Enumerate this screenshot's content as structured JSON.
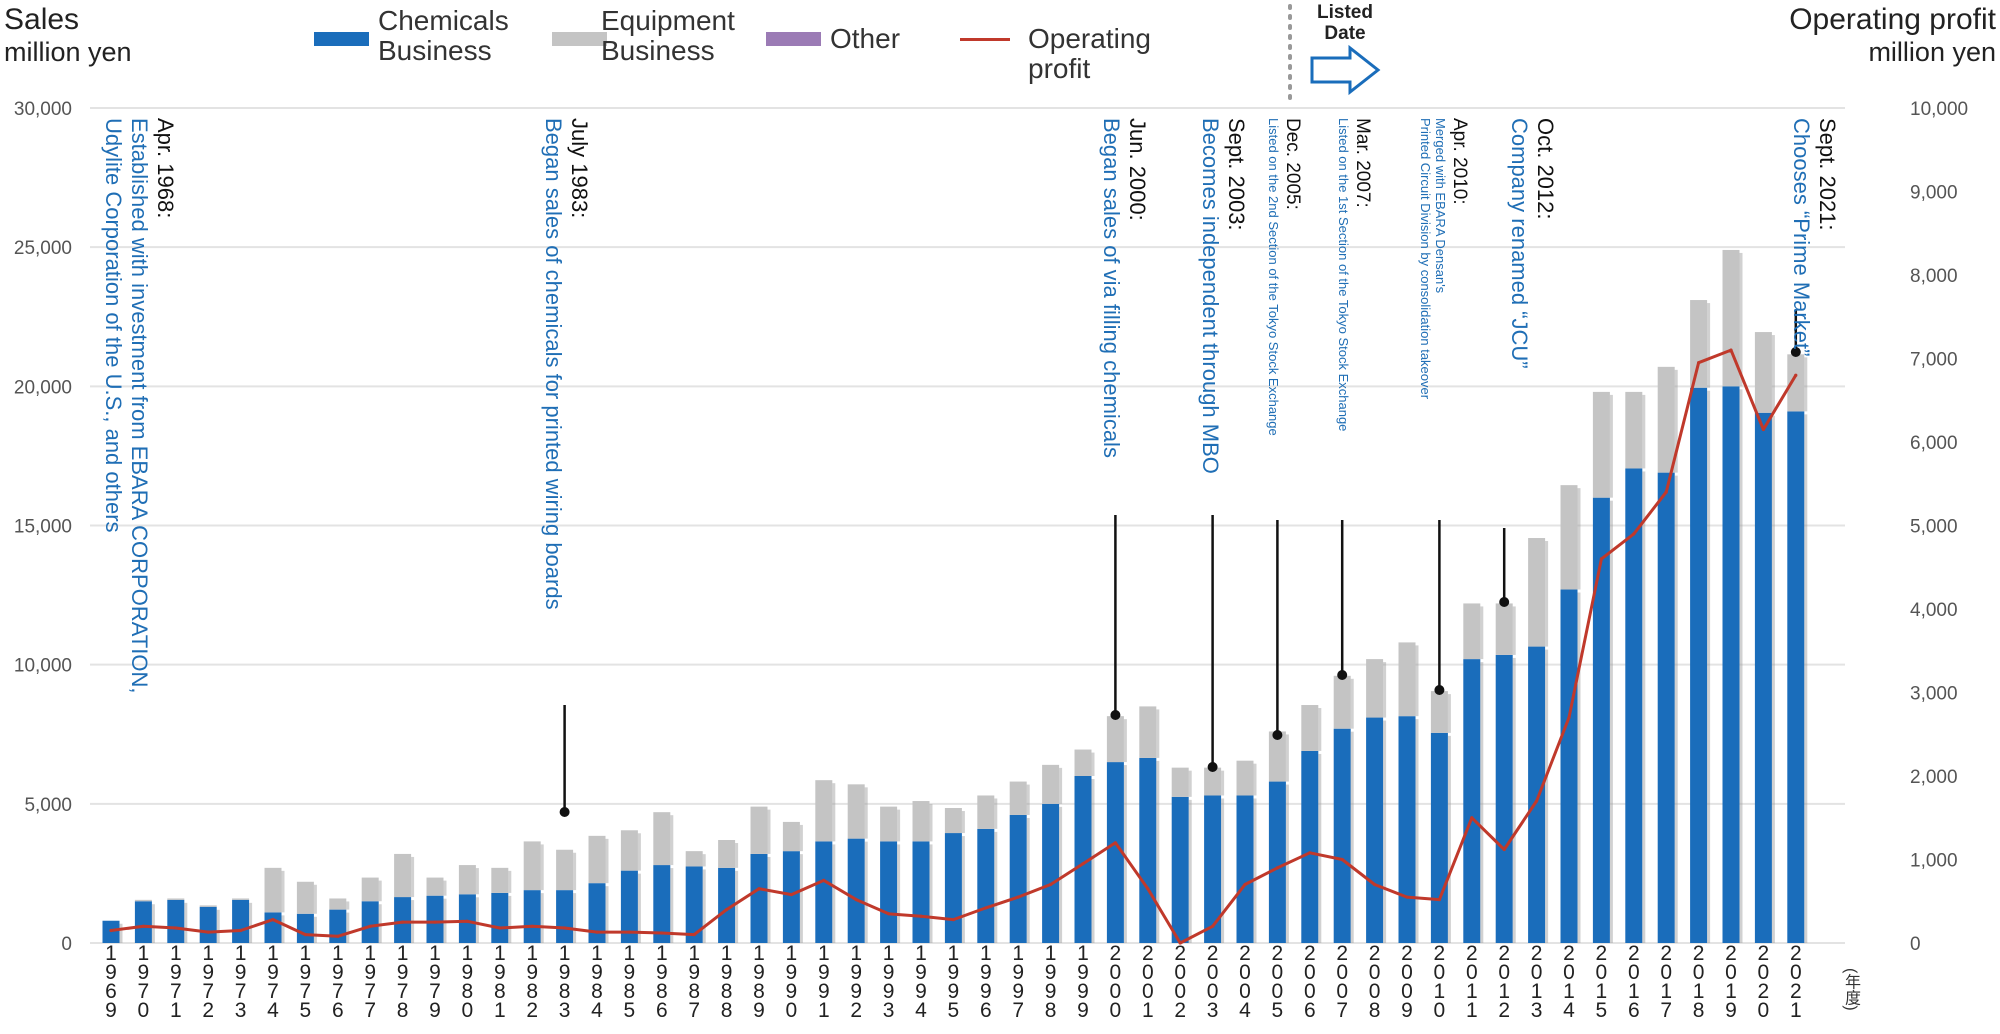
{
  "left_axis": {
    "title_line1": "Sales",
    "title_line2": "million yen"
  },
  "right_axis": {
    "title_line1": "Operating profit",
    "title_line2": "million yen"
  },
  "legend": [
    {
      "label_line1": "Chemicals",
      "label_line2": "Business",
      "color": "#1a6dbb"
    },
    {
      "label_line1": "Equipment",
      "label_line2": "Business",
      "color": "#c4c4c4"
    },
    {
      "label_line1": "Other",
      "label_line2": "",
      "color": "#9b7bb5"
    },
    {
      "label_line1": "Operating profit",
      "label_line2": "",
      "color": "#c0392b"
    }
  ],
  "listed_marker": {
    "line1": "Listed",
    "line2": "Date"
  },
  "year_suffix": "(年度)",
  "annotations": [
    {
      "date": "Apr. 1968:",
      "text_lines": [
        "Established with investment from EBARA CORPORATION,",
        "Udylite Corporation of the U.S., and others"
      ]
    },
    {
      "date": "July 1983:",
      "text_lines": [
        "Began sales of chemicals for printed wiring boards"
      ]
    },
    {
      "date": "Jun. 2000:",
      "text_lines": [
        "Began sales of via filling chemicals"
      ]
    },
    {
      "date": "Sept. 2003:",
      "text_lines": [
        "Becomes independent through MBO"
      ]
    },
    {
      "date": "Dec. 2005:",
      "text_lines": [
        "Listed on the 2nd Section of the Tokyo Stock Exchange"
      ]
    },
    {
      "date": "Mar. 2007:",
      "text_lines": [
        "Listed on the 1st Section of the Tokyo Stock Exchange"
      ]
    },
    {
      "date": "Apr. 2010:",
      "text_lines": [
        "Merged with EBARA Densan's",
        "Printed Circuit Division by consolidation takeover"
      ]
    },
    {
      "date": "Oct. 2012:",
      "text_lines": [
        "Company renamed “JCU”"
      ]
    },
    {
      "date": "Sept. 2021:",
      "text_lines": [
        "Chooses “Prime Market”"
      ]
    }
  ],
  "chart_data": {
    "type": "bar",
    "stacked": true,
    "grid": true,
    "legend_position": "top",
    "categories": [
      "1969",
      "1970",
      "1971",
      "1972",
      "1973",
      "1974",
      "1975",
      "1976",
      "1977",
      "1978",
      "1979",
      "1980",
      "1981",
      "1982",
      "1983",
      "1984",
      "1985",
      "1986",
      "1987",
      "1988",
      "1989",
      "1990",
      "1991",
      "1992",
      "1993",
      "1994",
      "1995",
      "1996",
      "1997",
      "1998",
      "1999",
      "2000",
      "2001",
      "2002",
      "2003",
      "2004",
      "2005",
      "2006",
      "2007",
      "2008",
      "2009",
      "2010",
      "2011",
      "2012",
      "2013",
      "2014",
      "2015",
      "2016",
      "2017",
      "2018",
      "2019",
      "2020",
      "2021"
    ],
    "y_left_ticks": [
      "0",
      "5,000",
      "10,000",
      "15,000",
      "20,000",
      "25,000",
      "30,000"
    ],
    "y_right_ticks": [
      "0",
      "1,000",
      "2,000",
      "3,000",
      "4,000",
      "5,000",
      "6,000",
      "7,000",
      "8,000",
      "9,000",
      "10,000"
    ],
    "ylim_left": [
      0,
      30000
    ],
    "ylim_right": [
      0,
      10000
    ],
    "series": [
      {
        "name": "Chemicals Business",
        "axis": "left",
        "color": "#1a6dbb",
        "values": [
          800,
          1500,
          1550,
          1300,
          1550,
          1100,
          1050,
          1200,
          1500,
          1650,
          1700,
          1750,
          1800,
          1900,
          1900,
          2150,
          2600,
          2800,
          2750,
          2700,
          3200,
          3300,
          3650,
          3750,
          3650,
          3650,
          3950,
          4100,
          4600,
          5000,
          6000,
          6500,
          6650,
          5250,
          5300,
          5300,
          5800,
          6900,
          7700,
          8100,
          8150,
          7550,
          10200,
          10350,
          10650,
          12700,
          16000,
          17050,
          16900,
          19950,
          20000,
          19050,
          19100
        ]
      },
      {
        "name": "Equipment Business",
        "axis": "left",
        "color": "#c4c4c4",
        "values": [
          0,
          50,
          50,
          50,
          50,
          1600,
          1150,
          400,
          850,
          1550,
          650,
          1050,
          900,
          1750,
          1450,
          1700,
          1450,
          1900,
          550,
          1000,
          1700,
          1050,
          2200,
          1950,
          1250,
          1450,
          900,
          1200,
          1200,
          1400,
          950,
          1650,
          1850,
          1050,
          1000,
          1250,
          1800,
          1650,
          1900,
          2100,
          2650,
          1500,
          2000,
          1850,
          3900,
          3750,
          3800,
          2750,
          3800,
          3150,
          4900,
          2900,
          2050
        ]
      },
      {
        "name": "Other",
        "axis": "left",
        "color": "#9b7bb5",
        "values": [
          0,
          0,
          0,
          0,
          0,
          0,
          0,
          0,
          0,
          0,
          0,
          0,
          0,
          0,
          0,
          0,
          0,
          0,
          0,
          0,
          0,
          0,
          0,
          0,
          0,
          0,
          0,
          0,
          0,
          0,
          0,
          0,
          0,
          0,
          0,
          0,
          0,
          0,
          0,
          0,
          0,
          0,
          0,
          0,
          0,
          0,
          0,
          0,
          0,
          0,
          0,
          0,
          0
        ]
      },
      {
        "name": "Operating profit",
        "axis": "right",
        "type": "line",
        "color": "#c0392b",
        "values": [
          150,
          200,
          180,
          130,
          150,
          280,
          100,
          80,
          200,
          250,
          250,
          260,
          180,
          200,
          180,
          130,
          130,
          120,
          100,
          400,
          650,
          580,
          750,
          520,
          350,
          320,
          280,
          420,
          550,
          700,
          950,
          1200,
          650,
          0,
          200,
          700,
          900,
          1080,
          1000,
          700,
          550,
          520,
          1500,
          1120,
          1700,
          2700,
          4600,
          4900,
          5400,
          6950,
          7100,
          6150,
          6800
        ]
      }
    ]
  }
}
